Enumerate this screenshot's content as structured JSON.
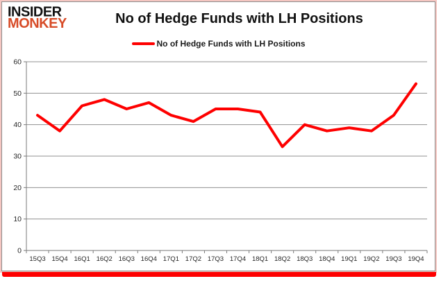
{
  "logo": {
    "line1": "INSIDER",
    "line2": "MONKEY",
    "line2_color": "#d74b27"
  },
  "header": {
    "title": "No of Hedge Funds with LH Positions"
  },
  "legend": {
    "label": "No of Hedge Funds with LH Positions",
    "marker_color": "#fe0000"
  },
  "frame": {
    "border_color": "#8c8c8c",
    "glow_color": "#f5c6c1",
    "accent_color": "#fe0000"
  },
  "chart_data": {
    "type": "line",
    "title": "No of Hedge Funds with LH Positions",
    "categories": [
      "15Q3",
      "15Q4",
      "16Q1",
      "16Q2",
      "16Q3",
      "16Q4",
      "17Q1",
      "17Q2",
      "17Q3",
      "17Q4",
      "18Q1",
      "18Q2",
      "18Q3",
      "18Q4",
      "19Q1",
      "19Q2",
      "19Q3",
      "19Q4"
    ],
    "series": [
      {
        "name": "No of Hedge Funds with LH Positions",
        "color": "#fe0000",
        "values": [
          43,
          38,
          46,
          48,
          45,
          47,
          43,
          41,
          45,
          45,
          44,
          33,
          40,
          38,
          39,
          38,
          43,
          53
        ]
      }
    ],
    "xlabel": "",
    "ylabel": "",
    "ylim": [
      0,
      60
    ],
    "yticks": [
      0,
      10,
      20,
      30,
      40,
      50,
      60
    ],
    "grid": "horizontal",
    "gridline_color": "#909090",
    "axis_color": "#7a7a7a",
    "legend_position": "top-center"
  }
}
